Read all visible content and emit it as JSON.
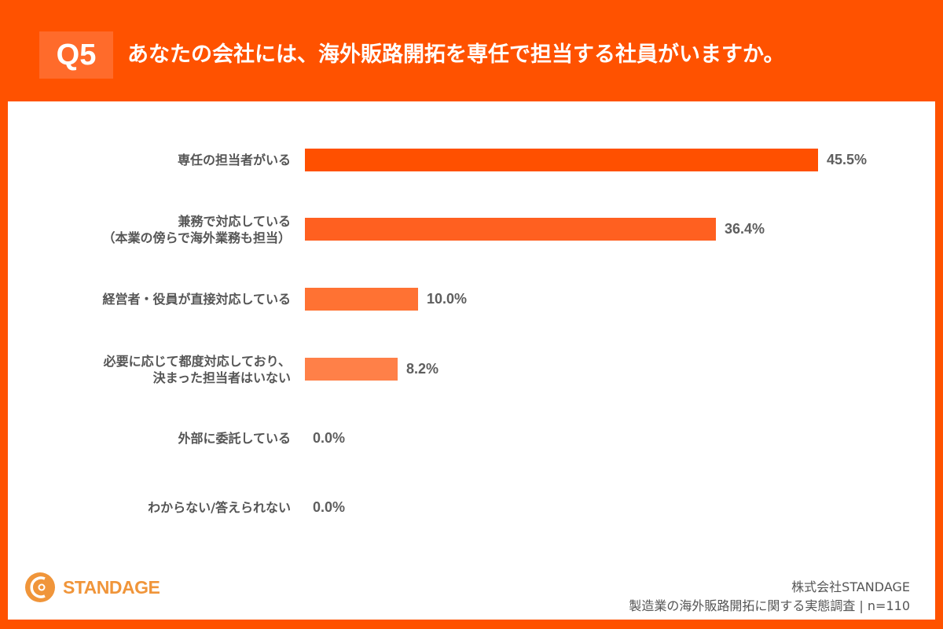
{
  "header": {
    "question_number": "Q5",
    "title": "あなたの会社には、海外販路開拓を専任で担当する社員がいますか。"
  },
  "colors": {
    "background": "#ff5200",
    "badge": "#ff6b2b",
    "bars": [
      "#ff5000",
      "#ff6020",
      "#ff7233",
      "#ff8048",
      "#ff9060",
      "#ffa078"
    ],
    "label_text": "#555555",
    "logo": "#f0953a"
  },
  "chart_data": {
    "type": "bar",
    "orientation": "horizontal",
    "title": "Q5 あなたの会社には、海外販路開拓を専任で担当する社員がいますか。",
    "categories": [
      "専任の担当者がいる",
      "兼務で対応している（本業の傍らで海外業務も担当）",
      "経営者・役員が直接対応している",
      "必要に応じて都度対応しており、決まった担当者はいない",
      "外部に委託している",
      "わからない/答えられない"
    ],
    "values": [
      45.5,
      36.4,
      10.0,
      8.2,
      0.0,
      0.0
    ],
    "unit": "%",
    "xlabel": "",
    "ylabel": "",
    "xlim": [
      0,
      50
    ],
    "grid": false,
    "legend": null,
    "data_labels": [
      "45.5%",
      "36.4%",
      "10.0%",
      "8.2%",
      "0.0%",
      "0.0%"
    ]
  },
  "rows": [
    {
      "label_lines": [
        "専任の担当者がいる"
      ],
      "value": 45.5,
      "value_label": "45.5%"
    },
    {
      "label_lines": [
        "兼務で対応している",
        "（本業の傍らで海外業務も担当）"
      ],
      "value": 36.4,
      "value_label": "36.4%"
    },
    {
      "label_lines": [
        "経営者・役員が直接対応している"
      ],
      "value": 10.0,
      "value_label": "10.0%"
    },
    {
      "label_lines": [
        "必要に応じて都度対応しており、",
        "決まった担当者はいない"
      ],
      "value": 8.2,
      "value_label": "8.2%"
    },
    {
      "label_lines": [
        "外部に委託している"
      ],
      "value": 0.0,
      "value_label": "0.0%"
    },
    {
      "label_lines": [
        "わからない/答えられない"
      ],
      "value": 0.0,
      "value_label": "0.0%"
    }
  ],
  "logo": {
    "text": "STANDAGE",
    "icon": "standage-logo-icon"
  },
  "footer": {
    "company": "株式会社STANDAGE",
    "survey": "製造業の海外販路開拓に関する実態調査 | n=110"
  }
}
